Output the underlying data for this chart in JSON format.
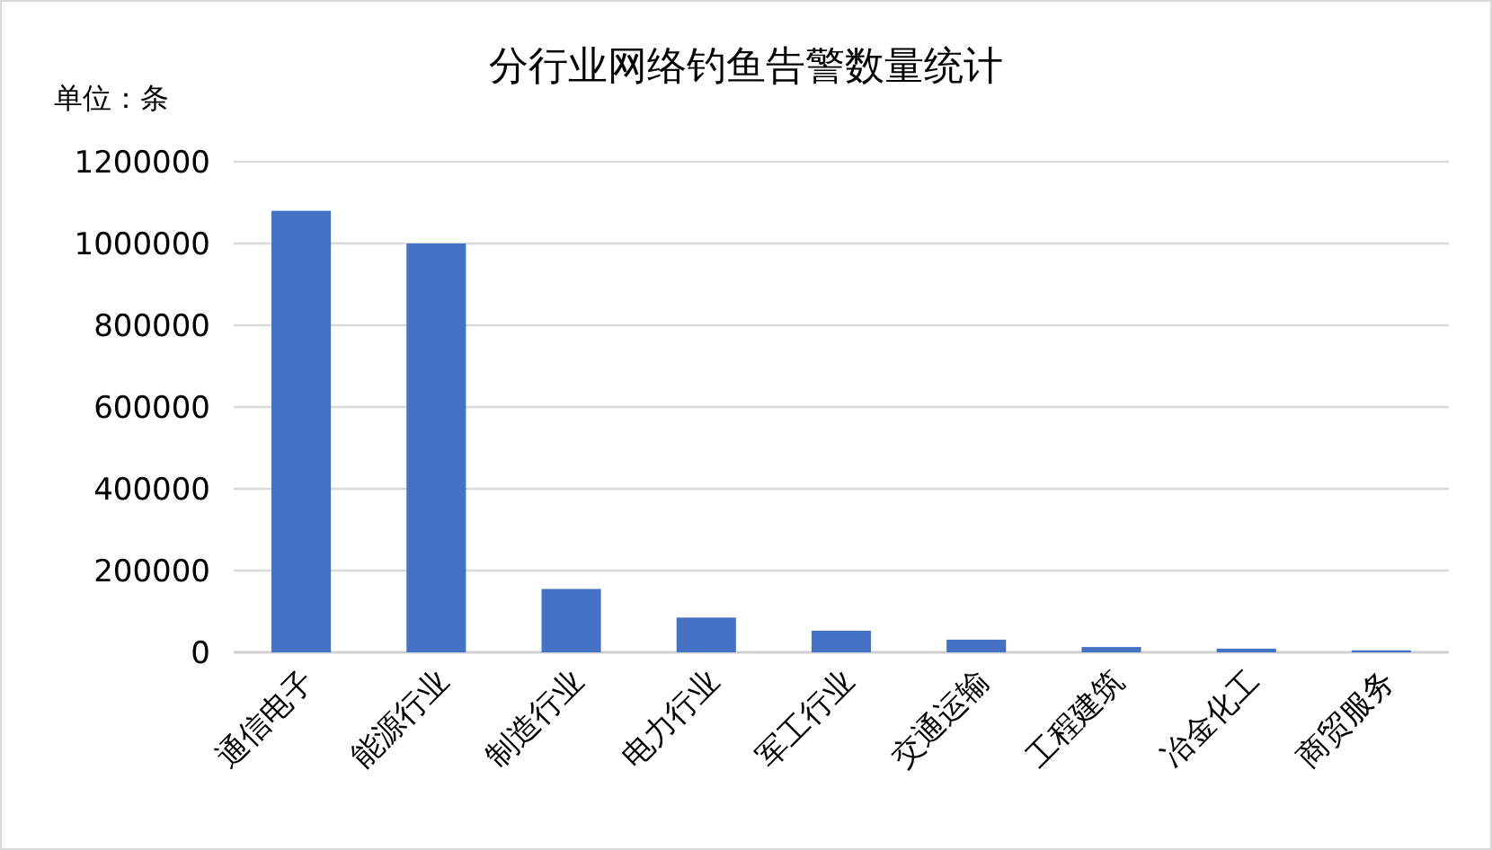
{
  "chart_data": {
    "type": "bar",
    "title": "分行业网络钓鱼告警数量统计",
    "ylabel": "单位：条",
    "categories": [
      "通信电子",
      "能源行业",
      "制造行业",
      "电力行业",
      "军工行业",
      "交通运输",
      "工程建筑",
      "冶金化工",
      "商贸服务"
    ],
    "values": [
      1080000,
      1000000,
      155000,
      85000,
      53000,
      31000,
      13000,
      9000,
      5000
    ],
    "color": "#4472c4",
    "ylim": [
      0,
      1200000
    ],
    "yticks": [
      0,
      200000,
      400000,
      600000,
      800000,
      1000000,
      1200000
    ],
    "grid": "y"
  }
}
